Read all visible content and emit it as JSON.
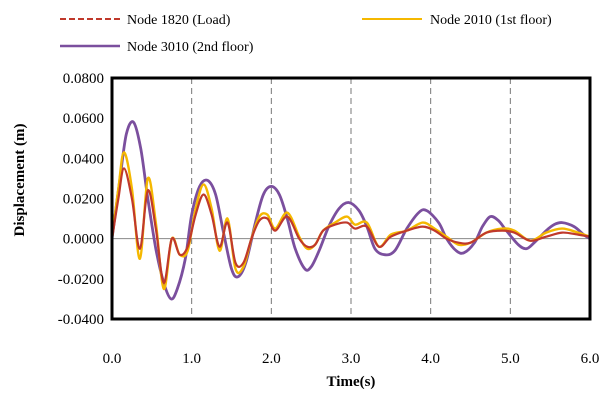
{
  "chart_data": {
    "type": "line",
    "title": "",
    "xlabel": "Time(s)",
    "ylabel": "Displacement (m)",
    "xlim": [
      0,
      6
    ],
    "ylim": [
      -0.04,
      0.08
    ],
    "xticks": [
      0,
      1,
      2,
      3,
      4,
      5,
      6
    ],
    "xtick_labels": [
      "0.0",
      "1.0",
      "2.0",
      "3.0",
      "4.0",
      "5.0",
      "6.0"
    ],
    "yticks": [
      -0.04,
      -0.02,
      0,
      0.02,
      0.04,
      0.06,
      0.08
    ],
    "ytick_labels": [
      "-0.0400",
      "-0.0200",
      "0.0000",
      "0.0200",
      "0.0400",
      "0.0600",
      "0.0800"
    ],
    "vertical_gridlines": [
      1,
      2,
      3,
      4,
      5
    ],
    "grid": "vertical dashed",
    "legend_position": "top",
    "series": [
      {
        "name": "Node 1820 (Load)",
        "color": "#c0392b",
        "dash": "dashed",
        "points": [
          [
            0,
            0
          ],
          [
            0.08,
            0.02
          ],
          [
            0.15,
            0.035
          ],
          [
            0.25,
            0.02
          ],
          [
            0.35,
            -0.005
          ],
          [
            0.45,
            0.024
          ],
          [
            0.55,
            0.005
          ],
          [
            0.65,
            -0.022
          ],
          [
            0.75,
            0
          ],
          [
            0.85,
            -0.008
          ],
          [
            0.95,
            -0.004
          ],
          [
            1.05,
            0.012
          ],
          [
            1.15,
            0.022
          ],
          [
            1.25,
            0.012
          ],
          [
            1.35,
            -0.004
          ],
          [
            1.45,
            0.008
          ],
          [
            1.55,
            -0.012
          ],
          [
            1.65,
            -0.012
          ],
          [
            1.75,
            0
          ],
          [
            1.85,
            0.009
          ],
          [
            1.95,
            0.01
          ],
          [
            2.05,
            0.004
          ],
          [
            2.2,
            0.011
          ],
          [
            2.35,
            0
          ],
          [
            2.45,
            -0.004
          ],
          [
            2.55,
            -0.003
          ],
          [
            2.65,
            0.004
          ],
          [
            2.8,
            0.007
          ],
          [
            2.95,
            0.008
          ],
          [
            3.05,
            0.005
          ],
          [
            3.2,
            0.006
          ],
          [
            3.35,
            -0.004
          ],
          [
            3.5,
            0.001
          ],
          [
            3.7,
            0.004
          ],
          [
            3.9,
            0.006
          ],
          [
            4.05,
            0.004
          ],
          [
            4.2,
            0
          ],
          [
            4.35,
            -0.002
          ],
          [
            4.5,
            -0.002
          ],
          [
            4.7,
            0.003
          ],
          [
            4.9,
            0.004
          ],
          [
            5.05,
            0.003
          ],
          [
            5.25,
            -0.001
          ],
          [
            5.45,
            0.001
          ],
          [
            5.65,
            0.003
          ],
          [
            5.85,
            0.002
          ],
          [
            6.0,
            0.001
          ]
        ]
      },
      {
        "name": "Node 2010 (1st floor)",
        "color": "#f5b800",
        "dash": "solid",
        "points": [
          [
            0,
            0
          ],
          [
            0.08,
            0.025
          ],
          [
            0.15,
            0.043
          ],
          [
            0.25,
            0.025
          ],
          [
            0.35,
            -0.01
          ],
          [
            0.45,
            0.03
          ],
          [
            0.55,
            0.008
          ],
          [
            0.65,
            -0.025
          ],
          [
            0.75,
            0
          ],
          [
            0.85,
            -0.008
          ],
          [
            0.95,
            -0.006
          ],
          [
            1.05,
            0.015
          ],
          [
            1.15,
            0.027
          ],
          [
            1.25,
            0.015
          ],
          [
            1.35,
            -0.006
          ],
          [
            1.45,
            0.01
          ],
          [
            1.55,
            -0.015
          ],
          [
            1.65,
            -0.014
          ],
          [
            1.75,
            0
          ],
          [
            1.85,
            0.011
          ],
          [
            1.95,
            0.012
          ],
          [
            2.05,
            0.005
          ],
          [
            2.2,
            0.013
          ],
          [
            2.35,
            0.001
          ],
          [
            2.45,
            -0.005
          ],
          [
            2.55,
            -0.003
          ],
          [
            2.65,
            0.004
          ],
          [
            2.8,
            0.008
          ],
          [
            2.95,
            0.011
          ],
          [
            3.05,
            0.007
          ],
          [
            3.2,
            0.008
          ],
          [
            3.35,
            -0.004
          ],
          [
            3.5,
            0.002
          ],
          [
            3.7,
            0.004
          ],
          [
            3.9,
            0.008
          ],
          [
            4.05,
            0.005
          ],
          [
            4.2,
            0.001
          ],
          [
            4.35,
            -0.003
          ],
          [
            4.5,
            -0.002
          ],
          [
            4.7,
            0.003
          ],
          [
            4.9,
            0.005
          ],
          [
            5.05,
            0.004
          ],
          [
            5.25,
            -0.001
          ],
          [
            5.45,
            0.003
          ],
          [
            5.65,
            0.005
          ],
          [
            5.85,
            0.003
          ],
          [
            6.0,
            0.001
          ]
        ]
      },
      {
        "name": "Node 3010 (2nd floor)",
        "color": "#7b4f9e",
        "dash": "solid",
        "points": [
          [
            0,
            0
          ],
          [
            0.1,
            0.03
          ],
          [
            0.18,
            0.052
          ],
          [
            0.27,
            0.058
          ],
          [
            0.36,
            0.045
          ],
          [
            0.45,
            0.02
          ],
          [
            0.55,
            -0.005
          ],
          [
            0.65,
            -0.022
          ],
          [
            0.74,
            -0.03
          ],
          [
            0.82,
            -0.025
          ],
          [
            0.92,
            -0.01
          ],
          [
            1.0,
            0.012
          ],
          [
            1.1,
            0.026
          ],
          [
            1.2,
            0.029
          ],
          [
            1.3,
            0.022
          ],
          [
            1.4,
            0.003
          ],
          [
            1.5,
            -0.015
          ],
          [
            1.58,
            -0.019
          ],
          [
            1.68,
            -0.012
          ],
          [
            1.8,
            0.008
          ],
          [
            1.9,
            0.022
          ],
          [
            2.0,
            0.026
          ],
          [
            2.1,
            0.022
          ],
          [
            2.2,
            0.01
          ],
          [
            2.3,
            -0.005
          ],
          [
            2.42,
            -0.015
          ],
          [
            2.5,
            -0.014
          ],
          [
            2.6,
            -0.006
          ],
          [
            2.72,
            0.006
          ],
          [
            2.85,
            0.015
          ],
          [
            2.97,
            0.018
          ],
          [
            3.1,
            0.014
          ],
          [
            3.2,
            0.006
          ],
          [
            3.3,
            -0.005
          ],
          [
            3.42,
            -0.008
          ],
          [
            3.55,
            -0.006
          ],
          [
            3.7,
            0.005
          ],
          [
            3.85,
            0.013
          ],
          [
            3.95,
            0.014
          ],
          [
            4.1,
            0.008
          ],
          [
            4.2,
            0
          ],
          [
            4.32,
            -0.006
          ],
          [
            4.42,
            -0.007
          ],
          [
            4.55,
            -0.002
          ],
          [
            4.65,
            0.006
          ],
          [
            4.75,
            0.011
          ],
          [
            4.85,
            0.009
          ],
          [
            4.95,
            0.004
          ],
          [
            5.1,
            -0.003
          ],
          [
            5.2,
            -0.005
          ],
          [
            5.3,
            -0.002
          ],
          [
            5.45,
            0.004
          ],
          [
            5.55,
            0.007
          ],
          [
            5.65,
            0.008
          ],
          [
            5.8,
            0.006
          ],
          [
            5.92,
            0.002
          ],
          [
            6.0,
            0
          ]
        ]
      }
    ]
  }
}
